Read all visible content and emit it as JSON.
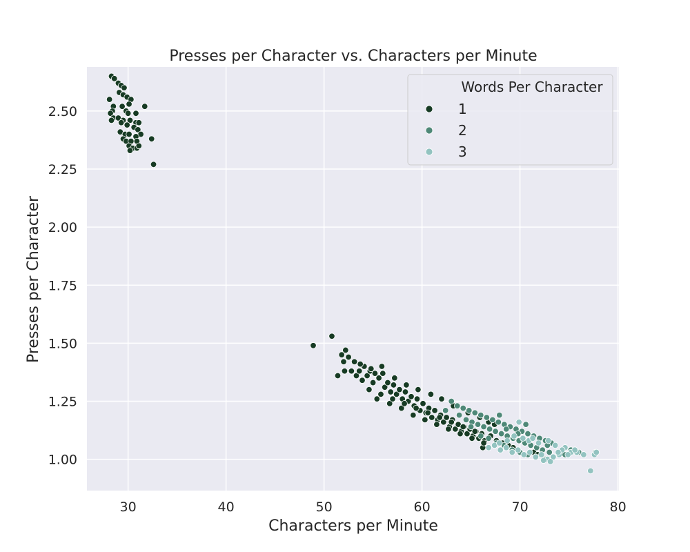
{
  "chart_data": {
    "type": "scatter",
    "title": "Presses per Character vs. Characters per Minute",
    "xlabel": "Characters per Minute",
    "ylabel": "Presses per Character",
    "xlim": [
      25.8,
      80.1
    ],
    "ylim": [
      0.865,
      2.69
    ],
    "xticks": [
      30,
      40,
      50,
      60,
      70,
      80
    ],
    "yticks": [
      1.0,
      1.25,
      1.5,
      1.75,
      2.0,
      2.25,
      2.5
    ],
    "xtick_labels": [
      "30",
      "40",
      "50",
      "60",
      "70",
      "80"
    ],
    "ytick_labels": [
      "1.00",
      "1.25",
      "1.50",
      "1.75",
      "2.00",
      "2.25",
      "2.50"
    ],
    "grid": true,
    "background": "#eaeaf2",
    "legend": {
      "title": "Words Per Character",
      "position": "top-right"
    },
    "series": [
      {
        "name": "1",
        "color": "#173b24",
        "points": [
          [
            28.3,
            2.65
          ],
          [
            28.6,
            2.64
          ],
          [
            29.0,
            2.62
          ],
          [
            29.3,
            2.61
          ],
          [
            29.6,
            2.6
          ],
          [
            29.1,
            2.58
          ],
          [
            29.5,
            2.57
          ],
          [
            29.9,
            2.56
          ],
          [
            30.3,
            2.55
          ],
          [
            28.1,
            2.55
          ],
          [
            28.5,
            2.52
          ],
          [
            29.4,
            2.52
          ],
          [
            30.1,
            2.53
          ],
          [
            31.7,
            2.52
          ],
          [
            28.4,
            2.5
          ],
          [
            28.2,
            2.49
          ],
          [
            29.8,
            2.5
          ],
          [
            30.0,
            2.49
          ],
          [
            30.8,
            2.49
          ],
          [
            28.5,
            2.47
          ],
          [
            29.0,
            2.47
          ],
          [
            29.5,
            2.46
          ],
          [
            30.2,
            2.46
          ],
          [
            30.8,
            2.45
          ],
          [
            31.1,
            2.45
          ],
          [
            28.3,
            2.46
          ],
          [
            29.3,
            2.45
          ],
          [
            29.9,
            2.44
          ],
          [
            30.6,
            2.43
          ],
          [
            31.0,
            2.42
          ],
          [
            29.2,
            2.41
          ],
          [
            29.7,
            2.4
          ],
          [
            30.1,
            2.4
          ],
          [
            31.3,
            2.4
          ],
          [
            30.8,
            2.39
          ],
          [
            29.5,
            2.38
          ],
          [
            29.8,
            2.37
          ],
          [
            30.3,
            2.37
          ],
          [
            30.9,
            2.37
          ],
          [
            32.4,
            2.38
          ],
          [
            30.1,
            2.35
          ],
          [
            30.5,
            2.34
          ],
          [
            30.9,
            2.34
          ],
          [
            31.1,
            2.35
          ],
          [
            30.2,
            2.33
          ],
          [
            32.6,
            2.27
          ],
          [
            48.9,
            1.49
          ],
          [
            50.8,
            1.53
          ],
          [
            51.4,
            1.36
          ],
          [
            51.8,
            1.45
          ],
          [
            52.0,
            1.42
          ],
          [
            52.2,
            1.47
          ],
          [
            52.5,
            1.44
          ],
          [
            52.8,
            1.38
          ],
          [
            52.1,
            1.38
          ],
          [
            53.1,
            1.42
          ],
          [
            53.3,
            1.36
          ],
          [
            53.6,
            1.38
          ],
          [
            53.9,
            1.34
          ],
          [
            54.1,
            1.4
          ],
          [
            54.4,
            1.36
          ],
          [
            54.7,
            1.38
          ],
          [
            55.0,
            1.33
          ],
          [
            55.2,
            1.37
          ],
          [
            55.6,
            1.35
          ],
          [
            55.9,
            1.4
          ],
          [
            56.2,
            1.31
          ],
          [
            56.5,
            1.33
          ],
          [
            56.8,
            1.29
          ],
          [
            57.1,
            1.32
          ],
          [
            57.4,
            1.28
          ],
          [
            57.7,
            1.3
          ],
          [
            58.0,
            1.26
          ],
          [
            58.3,
            1.29
          ],
          [
            58.6,
            1.25
          ],
          [
            58.9,
            1.27
          ],
          [
            59.2,
            1.23
          ],
          [
            59.5,
            1.26
          ],
          [
            59.8,
            1.21
          ],
          [
            60.1,
            1.24
          ],
          [
            60.4,
            1.2
          ],
          [
            60.7,
            1.22
          ],
          [
            61.0,
            1.18
          ],
          [
            61.3,
            1.21
          ],
          [
            61.6,
            1.17
          ],
          [
            61.9,
            1.19
          ],
          [
            62.2,
            1.16
          ],
          [
            62.5,
            1.18
          ],
          [
            62.8,
            1.14
          ],
          [
            63.1,
            1.17
          ],
          [
            63.4,
            1.13
          ],
          [
            63.7,
            1.15
          ],
          [
            64.0,
            1.12
          ],
          [
            64.3,
            1.14
          ],
          [
            64.6,
            1.11
          ],
          [
            64.9,
            1.13
          ],
          [
            65.2,
            1.1
          ],
          [
            65.5,
            1.12
          ],
          [
            65.8,
            1.09
          ],
          [
            66.1,
            1.11
          ],
          [
            66.4,
            1.08
          ],
          [
            66.2,
            1.05
          ],
          [
            67.0,
            1.1
          ],
          [
            67.6,
            1.08
          ],
          [
            68.2,
            1.07
          ],
          [
            68.8,
            1.06
          ],
          [
            69.3,
            1.05
          ],
          [
            71.4,
            1.03
          ],
          [
            71.8,
            1.02
          ],
          [
            66.8,
            1.16
          ],
          [
            67.4,
            1.15
          ],
          [
            65.9,
            1.18
          ],
          [
            64.7,
            1.2
          ],
          [
            63.2,
            1.23
          ],
          [
            62.0,
            1.26
          ],
          [
            60.9,
            1.28
          ],
          [
            59.6,
            1.3
          ],
          [
            58.4,
            1.32
          ],
          [
            57.2,
            1.35
          ],
          [
            56.0,
            1.37
          ],
          [
            54.8,
            1.39
          ],
          [
            53.7,
            1.41
          ],
          [
            55.4,
            1.26
          ],
          [
            56.7,
            1.24
          ],
          [
            57.9,
            1.22
          ],
          [
            59.1,
            1.19
          ],
          [
            60.3,
            1.17
          ],
          [
            61.5,
            1.15
          ],
          [
            62.7,
            1.13
          ],
          [
            63.9,
            1.11
          ],
          [
            65.1,
            1.09
          ],
          [
            66.3,
            1.07
          ],
          [
            54.6,
            1.3
          ],
          [
            55.8,
            1.28
          ],
          [
            57.0,
            1.26
          ],
          [
            58.2,
            1.24
          ],
          [
            59.4,
            1.22
          ],
          [
            60.6,
            1.2
          ],
          [
            61.8,
            1.18
          ],
          [
            63.0,
            1.16
          ],
          [
            64.2,
            1.14
          ],
          [
            65.4,
            1.12
          ]
        ]
      },
      {
        "name": "2",
        "color": "#4e8877",
        "points": [
          [
            63.0,
            1.25
          ],
          [
            63.6,
            1.23
          ],
          [
            64.2,
            1.22
          ],
          [
            64.8,
            1.21
          ],
          [
            65.4,
            1.2
          ],
          [
            66.0,
            1.19
          ],
          [
            66.6,
            1.18
          ],
          [
            67.2,
            1.17
          ],
          [
            67.8,
            1.16
          ],
          [
            68.4,
            1.15
          ],
          [
            69.0,
            1.14
          ],
          [
            69.6,
            1.13
          ],
          [
            70.2,
            1.12
          ],
          [
            70.8,
            1.11
          ],
          [
            71.4,
            1.1
          ],
          [
            72.0,
            1.09
          ],
          [
            72.6,
            1.08
          ],
          [
            73.2,
            1.07
          ],
          [
            64.5,
            1.17
          ],
          [
            65.1,
            1.16
          ],
          [
            65.7,
            1.15
          ],
          [
            66.3,
            1.14
          ],
          [
            66.9,
            1.13
          ],
          [
            67.5,
            1.12
          ],
          [
            68.1,
            1.11
          ],
          [
            68.7,
            1.1
          ],
          [
            69.3,
            1.09
          ],
          [
            69.9,
            1.08
          ],
          [
            70.5,
            1.07
          ],
          [
            71.1,
            1.06
          ],
          [
            71.7,
            1.05
          ],
          [
            72.3,
            1.04
          ],
          [
            73.0,
            1.03
          ],
          [
            66.0,
            1.1
          ],
          [
            66.8,
            1.09
          ],
          [
            67.6,
            1.07
          ],
          [
            68.4,
            1.06
          ],
          [
            69.2,
            1.04
          ],
          [
            70.0,
            1.03
          ],
          [
            70.8,
            1.02
          ],
          [
            71.6,
            1.01
          ],
          [
            72.6,
            1.0
          ],
          [
            73.4,
            1.01
          ],
          [
            74.0,
            1.03
          ],
          [
            74.6,
            1.02
          ],
          [
            75.2,
            1.04
          ],
          [
            76.0,
            1.03
          ],
          [
            77.7,
            1.03
          ],
          [
            62.4,
            1.21
          ],
          [
            63.8,
            1.19
          ],
          [
            65.0,
            1.14
          ],
          [
            67.9,
            1.19
          ],
          [
            68.6,
            1.13
          ],
          [
            69.8,
            1.11
          ],
          [
            70.6,
            1.15
          ],
          [
            72.8,
            1.06
          ]
        ]
      },
      {
        "name": "3",
        "color": "#93c3c0",
        "points": [
          [
            66.8,
            1.05
          ],
          [
            67.4,
            1.06
          ],
          [
            68.0,
            1.04
          ],
          [
            68.6,
            1.05
          ],
          [
            69.2,
            1.03
          ],
          [
            69.8,
            1.04
          ],
          [
            70.4,
            1.02
          ],
          [
            71.0,
            1.03
          ],
          [
            71.6,
            1.01
          ],
          [
            72.2,
            1.02
          ],
          [
            72.8,
            1.0
          ],
          [
            73.4,
            1.01
          ],
          [
            74.0,
            1.02
          ],
          [
            74.6,
            1.05
          ],
          [
            75.2,
            1.03
          ],
          [
            75.8,
            1.03
          ],
          [
            76.5,
            1.02
          ],
          [
            77.6,
            1.02
          ],
          [
            77.8,
            1.03
          ],
          [
            77.2,
            0.95
          ],
          [
            73.1,
            0.99
          ],
          [
            72.4,
            0.995
          ],
          [
            70.9,
            1.08
          ],
          [
            71.9,
            1.07
          ],
          [
            72.9,
            1.08
          ],
          [
            73.6,
            1.06
          ],
          [
            74.3,
            1.04
          ],
          [
            70.3,
            1.09
          ],
          [
            69.4,
            1.1
          ],
          [
            68.7,
            1.08
          ],
          [
            67.9,
            1.07
          ],
          [
            69.9,
            1.16
          ],
          [
            71.3,
            1.09
          ],
          [
            75.6,
            1.04
          ],
          [
            74.9,
            1.02
          ],
          [
            73.9,
            1.03
          ]
        ]
      }
    ]
  }
}
